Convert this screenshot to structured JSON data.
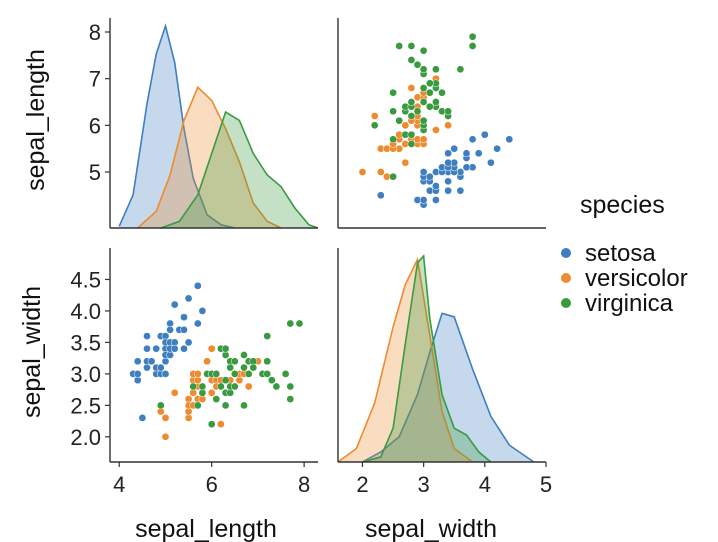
{
  "chart_data": {
    "type": "pairplot",
    "variables": [
      "sepal_length",
      "sepal_width"
    ],
    "axis_labels": {
      "x": [
        "sepal_length",
        "sepal_width"
      ],
      "y": [
        "sepal_length",
        "sepal_width"
      ]
    },
    "ranges": {
      "sepal_length": [
        3.8,
        8.3
      ],
      "sepal_width": [
        1.6,
        5.0
      ]
    },
    "ticks": {
      "col": [
        [
          "4",
          "6",
          "8"
        ],
        [
          "2",
          "3",
          "4",
          "5"
        ]
      ],
      "row": [
        [
          "5",
          "6",
          "7",
          "8"
        ],
        [
          "2.0",
          "2.5",
          "3.0",
          "3.5",
          "4.0",
          "4.5"
        ]
      ]
    },
    "legend": {
      "title": "species",
      "placement": "right"
    },
    "grid": false,
    "series": [
      {
        "name": "setosa",
        "color": "#3f7fc0",
        "kde": {
          "sepal_length": {
            "x": [
              4.0,
              4.3,
              4.6,
              4.8,
              5.0,
              5.2,
              5.4,
              5.6,
              5.9,
              6.2,
              6.5
            ],
            "density": [
              0.01,
              0.2,
              0.75,
              1.05,
              1.22,
              1.0,
              0.6,
              0.3,
              0.08,
              0.02,
              0.0
            ]
          },
          "sepal_width": {
            "x": [
              2.0,
              2.3,
              2.6,
              2.9,
              3.1,
              3.3,
              3.5,
              3.8,
              4.1,
              4.4,
              4.8
            ],
            "density": [
              0.0,
              0.06,
              0.15,
              0.4,
              0.65,
              0.88,
              0.86,
              0.55,
              0.27,
              0.1,
              0.0
            ]
          }
        },
        "points": [
          [
            4.3,
            3.0
          ],
          [
            4.4,
            2.9
          ],
          [
            4.4,
            3.0
          ],
          [
            4.4,
            3.2
          ],
          [
            4.5,
            2.3
          ],
          [
            4.6,
            3.1
          ],
          [
            4.6,
            3.4
          ],
          [
            4.6,
            3.6
          ],
          [
            4.6,
            3.2
          ],
          [
            4.7,
            3.2
          ],
          [
            4.8,
            3.4
          ],
          [
            4.8,
            3.0
          ],
          [
            4.8,
            3.1
          ],
          [
            4.9,
            3.0
          ],
          [
            4.9,
            3.1
          ],
          [
            4.9,
            3.6
          ],
          [
            5.0,
            3.6
          ],
          [
            5.0,
            3.4
          ],
          [
            5.0,
            3.0
          ],
          [
            5.0,
            3.5
          ],
          [
            5.0,
            3.2
          ],
          [
            5.0,
            3.3
          ],
          [
            5.1,
            3.5
          ],
          [
            5.1,
            3.8
          ],
          [
            5.1,
            3.7
          ],
          [
            5.1,
            3.3
          ],
          [
            5.1,
            3.4
          ],
          [
            5.2,
            3.5
          ],
          [
            5.2,
            4.1
          ],
          [
            5.2,
            3.4
          ],
          [
            5.3,
            3.7
          ],
          [
            5.4,
            3.9
          ],
          [
            5.4,
            3.7
          ],
          [
            5.4,
            3.4
          ],
          [
            5.5,
            4.2
          ],
          [
            5.5,
            3.5
          ],
          [
            5.7,
            4.4
          ],
          [
            5.7,
            3.8
          ],
          [
            5.8,
            4.0
          ]
        ]
      },
      {
        "name": "versicolor",
        "color": "#ef8a2e",
        "kde": {
          "sepal_length": {
            "x": [
              4.4,
              4.8,
              5.1,
              5.4,
              5.7,
              6.0,
              6.3,
              6.6,
              6.9,
              7.2,
              7.5
            ],
            "density": [
              0.0,
              0.1,
              0.32,
              0.65,
              0.85,
              0.77,
              0.6,
              0.4,
              0.15,
              0.04,
              0.0
            ]
          },
          "sepal_width": {
            "x": [
              1.6,
              1.9,
              2.2,
              2.5,
              2.7,
              2.9,
              3.1,
              3.3,
              3.5,
              3.8
            ],
            "density": [
              0.0,
              0.08,
              0.35,
              0.8,
              1.05,
              1.2,
              0.75,
              0.3,
              0.08,
              0.0
            ]
          }
        },
        "points": [
          [
            4.9,
            2.4
          ],
          [
            5.0,
            2.0
          ],
          [
            5.0,
            2.3
          ],
          [
            5.2,
            2.7
          ],
          [
            5.5,
            2.3
          ],
          [
            5.5,
            2.4
          ],
          [
            5.5,
            2.6
          ],
          [
            5.5,
            2.5
          ],
          [
            5.6,
            2.9
          ],
          [
            5.6,
            2.5
          ],
          [
            5.6,
            3.0
          ],
          [
            5.6,
            2.7
          ],
          [
            5.7,
            2.8
          ],
          [
            5.7,
            2.6
          ],
          [
            5.7,
            2.9
          ],
          [
            5.7,
            3.0
          ],
          [
            5.8,
            2.7
          ],
          [
            5.8,
            2.6
          ],
          [
            5.9,
            3.0
          ],
          [
            5.9,
            3.2
          ],
          [
            6.0,
            2.2
          ],
          [
            6.0,
            2.9
          ],
          [
            6.0,
            2.7
          ],
          [
            6.0,
            3.4
          ],
          [
            6.1,
            2.9
          ],
          [
            6.1,
            2.8
          ],
          [
            6.1,
            3.0
          ],
          [
            6.2,
            2.2
          ],
          [
            6.2,
            2.9
          ],
          [
            6.3,
            3.3
          ],
          [
            6.3,
            2.5
          ],
          [
            6.4,
            3.2
          ],
          [
            6.4,
            2.9
          ],
          [
            6.5,
            2.8
          ],
          [
            6.6,
            2.9
          ],
          [
            6.6,
            3.0
          ],
          [
            6.7,
            3.1
          ],
          [
            6.7,
            3.0
          ],
          [
            6.8,
            2.8
          ],
          [
            6.9,
            3.1
          ],
          [
            7.0,
            3.2
          ]
        ]
      },
      {
        "name": "virginica",
        "color": "#3a9a3f",
        "kde": {
          "sepal_length": {
            "x": [
              4.9,
              5.3,
              5.7,
              6.0,
              6.3,
              6.6,
              6.9,
              7.2,
              7.5,
              7.8,
              8.1,
              8.3
            ],
            "density": [
              0.0,
              0.04,
              0.2,
              0.45,
              0.7,
              0.65,
              0.45,
              0.32,
              0.25,
              0.12,
              0.02,
              0.0
            ]
          },
          "sepal_width": {
            "x": [
              2.0,
              2.3,
              2.5,
              2.7,
              2.9,
              3.0,
              3.1,
              3.3,
              3.5,
              3.7,
              3.9,
              4.1
            ],
            "density": [
              0.0,
              0.03,
              0.2,
              0.7,
              1.18,
              1.22,
              0.85,
              0.4,
              0.2,
              0.16,
              0.06,
              0.0
            ]
          }
        },
        "points": [
          [
            4.9,
            2.5
          ],
          [
            5.6,
            2.8
          ],
          [
            5.7,
            2.5
          ],
          [
            5.8,
            2.7
          ],
          [
            5.8,
            2.8
          ],
          [
            5.9,
            3.0
          ],
          [
            6.0,
            2.2
          ],
          [
            6.0,
            3.0
          ],
          [
            6.1,
            2.6
          ],
          [
            6.1,
            3.0
          ],
          [
            6.2,
            2.8
          ],
          [
            6.2,
            3.4
          ],
          [
            6.3,
            3.3
          ],
          [
            6.3,
            2.9
          ],
          [
            6.3,
            2.5
          ],
          [
            6.3,
            2.7
          ],
          [
            6.3,
            3.4
          ],
          [
            6.4,
            2.7
          ],
          [
            6.4,
            3.2
          ],
          [
            6.4,
            2.8
          ],
          [
            6.4,
            3.1
          ],
          [
            6.5,
            3.0
          ],
          [
            6.5,
            3.2
          ],
          [
            6.5,
            2.8
          ],
          [
            6.7,
            2.5
          ],
          [
            6.7,
            3.3
          ],
          [
            6.7,
            3.1
          ],
          [
            6.8,
            3.0
          ],
          [
            6.8,
            3.2
          ],
          [
            6.9,
            3.2
          ],
          [
            6.9,
            3.1
          ],
          [
            7.1,
            3.0
          ],
          [
            7.2,
            3.6
          ],
          [
            7.2,
            3.2
          ],
          [
            7.2,
            3.0
          ],
          [
            7.3,
            2.9
          ],
          [
            7.4,
            2.8
          ],
          [
            7.6,
            3.0
          ],
          [
            7.7,
            3.8
          ],
          [
            7.7,
            2.6
          ],
          [
            7.7,
            2.8
          ],
          [
            7.9,
            3.8
          ]
        ]
      }
    ]
  }
}
